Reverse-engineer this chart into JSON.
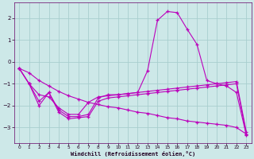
{
  "xlabel": "Windchill (Refroidissement éolien,°C)",
  "background_color": "#cde8e8",
  "grid_color": "#a8cece",
  "line_color": "#bb00bb",
  "x_values": [
    0,
    1,
    2,
    3,
    4,
    5,
    6,
    7,
    8,
    9,
    10,
    11,
    12,
    13,
    14,
    15,
    16,
    17,
    18,
    19,
    20,
    21,
    22,
    23
  ],
  "s_peak": [
    -0.3,
    -1.0,
    -1.8,
    -1.4,
    -2.2,
    -2.5,
    -2.5,
    -2.4,
    -1.65,
    -1.5,
    -1.5,
    -1.45,
    -1.4,
    -0.4,
    1.9,
    2.3,
    2.25,
    1.5,
    0.8,
    -0.85,
    -1.0,
    -1.1,
    -1.4,
    -3.35
  ],
  "s_zigzag": [
    -0.3,
    -1.0,
    -2.0,
    -1.4,
    -2.3,
    -2.6,
    -2.55,
    -2.5,
    -1.8,
    -1.65,
    -1.6,
    -1.55,
    -1.5,
    -1.45,
    -1.4,
    -1.35,
    -1.3,
    -1.25,
    -1.2,
    -1.15,
    -1.1,
    -1.05,
    -1.0,
    -3.3
  ],
  "s_flat": [
    -0.3,
    -1.0,
    -1.5,
    -1.6,
    -2.1,
    -2.4,
    -2.4,
    -1.85,
    -1.6,
    -1.55,
    -1.5,
    -1.45,
    -1.4,
    -1.35,
    -1.3,
    -1.25,
    -1.2,
    -1.15,
    -1.1,
    -1.05,
    -1.0,
    -0.95,
    -0.9,
    -3.2
  ],
  "s_diag": [
    -0.3,
    -0.5,
    -0.85,
    -1.1,
    -1.35,
    -1.55,
    -1.7,
    -1.85,
    -1.95,
    -2.05,
    -2.1,
    -2.2,
    -2.3,
    -2.35,
    -2.45,
    -2.55,
    -2.6,
    -2.7,
    -2.75,
    -2.8,
    -2.85,
    -2.9,
    -3.0,
    -3.3
  ],
  "ylim": [
    -3.7,
    2.7
  ],
  "xlim": [
    -0.5,
    23.5
  ],
  "yticks": [
    -3,
    -2,
    -1,
    0,
    1,
    2
  ],
  "xticks": [
    0,
    1,
    2,
    3,
    4,
    5,
    6,
    7,
    8,
    9,
    10,
    11,
    12,
    13,
    14,
    15,
    16,
    17,
    18,
    19,
    20,
    21,
    22,
    23
  ]
}
